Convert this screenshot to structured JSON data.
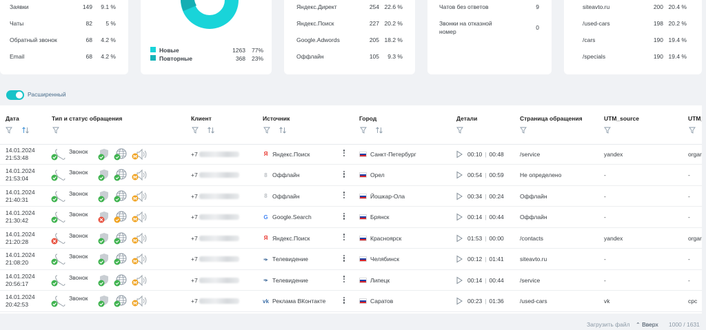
{
  "stats_card_1": {
    "rows": [
      {
        "label": "Заявки",
        "count": "149",
        "percent": "9.1 %"
      },
      {
        "label": "Чаты",
        "count": "82",
        "percent": "5 %"
      },
      {
        "label": "Обратный звонок",
        "count": "68",
        "percent": "4.2 %"
      },
      {
        "label": "Email",
        "count": "68",
        "percent": "4.2 %"
      }
    ]
  },
  "visitors_card": {
    "legend": [
      {
        "label": "Новые",
        "count": "1263",
        "percent": "77%",
        "color": "#19d4d9"
      },
      {
        "label": "Повторные",
        "count": "368",
        "percent": "23%",
        "color": "#16b3b8"
      }
    ],
    "donut_color": "#19d4d9"
  },
  "sources_card": {
    "rows": [
      {
        "label": "Яндекс.Директ",
        "count": "254",
        "percent": "22.6 %"
      },
      {
        "label": "Яндекс.Поиск",
        "count": "227",
        "percent": "20.2 %"
      },
      {
        "label": "Google.Adwords",
        "count": "205",
        "percent": "18.2 %"
      },
      {
        "label": "Оффлайн",
        "count": "105",
        "percent": "9.3 %"
      }
    ]
  },
  "missed_card": {
    "rows": [
      {
        "label": "Чатов без ответов",
        "count": "9"
      },
      {
        "label": "Звонки на отказной",
        "label2": "номер",
        "count": "0"
      }
    ]
  },
  "pages_card": {
    "rows": [
      {
        "label": "siteavto.ru",
        "count": "200",
        "percent": "20.4 %"
      },
      {
        "label": "/used-cars",
        "count": "198",
        "percent": "20.2 %"
      },
      {
        "label": "/cars",
        "count": "190",
        "percent": "19.4 %"
      },
      {
        "label": "/specials",
        "count": "190",
        "percent": "19.4 %"
      }
    ]
  },
  "toggle": {
    "label": "Расширенный",
    "on": true
  },
  "table": {
    "columns": {
      "date": "Дата",
      "type": "Тип и статус обращения",
      "client": "Клиент",
      "source": "Источник",
      "city": "Город",
      "details": "Детали",
      "page": "Страница обращения",
      "utm_source": "UTM_source",
      "utm_more": "UTM_"
    },
    "rows": [
      {
        "date": "14.01.2024",
        "time": "21:53:48",
        "type": "Звонок",
        "phone_prefix": "+7",
        "source": "Яндекс.Поиск",
        "source_icon": "yandex-icon",
        "city": "Санкт-Петербург",
        "dur1": "00:10",
        "dur2": "00:48",
        "page": "/service",
        "utm": "yandex",
        "utm2": "orgar",
        "status": "ok",
        "badge": "green"
      },
      {
        "date": "14.01.2024",
        "time": "21:53:04",
        "type": "Звонок",
        "phone_prefix": "+7",
        "source": "Оффлайн",
        "source_icon": "offline-icon",
        "city": "Орел",
        "dur1": "00:54",
        "dur2": "00:59",
        "page": "Не определено",
        "utm": "-",
        "utm2": "-",
        "status": "ok",
        "badge": "green"
      },
      {
        "date": "14.01.2024",
        "time": "21:40:31",
        "type": "Звонок",
        "phone_prefix": "+7",
        "source": "Оффлайн",
        "source_icon": "offline-icon",
        "city": "Йошкар-Ола",
        "dur1": "00:34",
        "dur2": "00:24",
        "page": "Оффлайн",
        "utm": "-",
        "utm2": "-",
        "status": "ok",
        "badge": "green"
      },
      {
        "date": "14.01.2024",
        "time": "21:30:42",
        "type": "Звонок",
        "phone_prefix": "+7",
        "source": "Google.Search",
        "source_icon": "google-icon",
        "city": "Брянск",
        "dur1": "00:14",
        "dur2": "00:44",
        "page": "Оффлайн",
        "utm": "-",
        "utm2": "-",
        "status": "ok",
        "badge": "red"
      },
      {
        "date": "14.01.2024",
        "time": "21:20:28",
        "type": "Звонок",
        "phone_prefix": "+7",
        "source": "Яндекс.Поиск",
        "source_icon": "yandex-icon",
        "city": "Красноярск",
        "dur1": "01:53",
        "dur2": "00:00",
        "page": "/contacts",
        "utm": "yandex",
        "utm2": "orgar",
        "status": "missed",
        "badge": "orange"
      },
      {
        "date": "14.01.2024",
        "time": "21:08:20",
        "type": "Звонок",
        "phone_prefix": "+7",
        "source": "Телевидение",
        "source_icon": "tv-icon",
        "city": "Челябинск",
        "dur1": "00:12",
        "dur2": "01:41",
        "page": "siteavto.ru",
        "utm": "-",
        "utm2": "-",
        "status": "ok",
        "badge": "green"
      },
      {
        "date": "14.01.2024",
        "time": "20:56:17",
        "type": "Звонок",
        "phone_prefix": "+7",
        "source": "Телевидение",
        "source_icon": "tv-icon",
        "city": "Липецк",
        "dur1": "00:14",
        "dur2": "00:44",
        "page": "/service",
        "utm": "-",
        "utm2": "-",
        "status": "ok",
        "badge": "orange"
      },
      {
        "date": "14.01.2024",
        "time": "20:42:53",
        "type": "Звонок",
        "phone_prefix": "+7",
        "source": "Реклама ВКонтакте",
        "source_icon": "vk-icon",
        "city": "Саратов",
        "dur1": "00:23",
        "dur2": "01:36",
        "page": "/used-cars",
        "utm": "vk",
        "utm2": "cpc",
        "status": "ok",
        "badge": "orange"
      }
    ]
  },
  "footer": {
    "upload": "Загрузить файл",
    "up": "Вверх",
    "count": "1000 / 1631"
  }
}
